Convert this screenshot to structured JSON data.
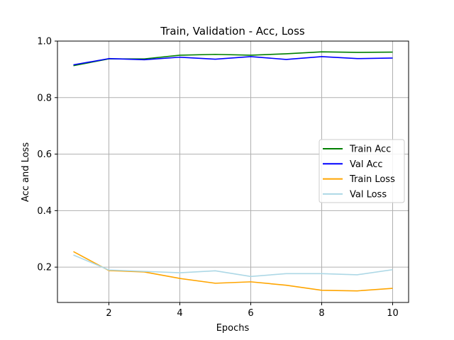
{
  "chart_data": {
    "type": "line",
    "title": "Train, Validation - Acc, Loss",
    "xlabel": "Epochs",
    "ylabel": "Acc and Loss",
    "x": [
      1,
      2,
      3,
      4,
      5,
      6,
      7,
      8,
      9,
      10
    ],
    "xlim": [
      0.55,
      10.45
    ],
    "ylim": [
      0.075,
      1.0
    ],
    "xticks": [
      2,
      4,
      6,
      8,
      10
    ],
    "yticks": [
      0.2,
      0.4,
      0.6,
      0.8,
      1.0
    ],
    "xtick_labels": [
      "2",
      "4",
      "6",
      "8",
      "10"
    ],
    "ytick_labels": [
      "0.2",
      "0.4",
      "0.6",
      "0.8",
      "1.0"
    ],
    "grid": true,
    "legend_position": "center-right",
    "series": [
      {
        "name": "Train Acc",
        "color": "#008000",
        "values": [
          0.913,
          0.937,
          0.937,
          0.95,
          0.953,
          0.95,
          0.955,
          0.962,
          0.96,
          0.961
        ]
      },
      {
        "name": "Val Acc",
        "color": "#0000ff",
        "values": [
          0.916,
          0.938,
          0.934,
          0.943,
          0.936,
          0.945,
          0.935,
          0.945,
          0.938,
          0.94
        ]
      },
      {
        "name": "Train Loss",
        "color": "#ffa500",
        "values": [
          0.255,
          0.188,
          0.183,
          0.16,
          0.143,
          0.148,
          0.136,
          0.118,
          0.116,
          0.125
        ]
      },
      {
        "name": "Val Loss",
        "color": "#add8e6",
        "values": [
          0.243,
          0.19,
          0.185,
          0.18,
          0.187,
          0.167,
          0.177,
          0.177,
          0.173,
          0.191
        ]
      }
    ]
  }
}
